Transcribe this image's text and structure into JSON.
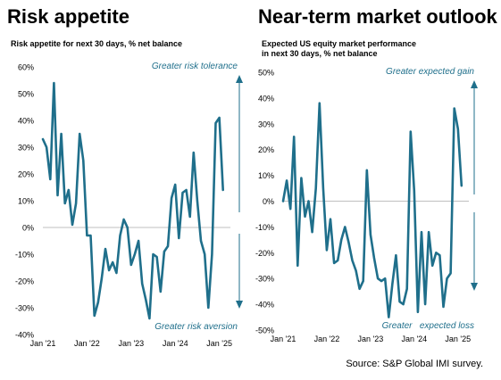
{
  "left_panel": {
    "title": "Risk appetite",
    "subtitle": "Risk appetite for next 30 days, % net balance",
    "annotation_top": "Greater risk tolerance",
    "annotation_bottom": "Greater risk aversion"
  },
  "right_panel": {
    "title": "Near-term market outlook",
    "subtitle_line1": "Expected US equity market performance",
    "subtitle_line2": "in next 30 days, % net balance",
    "annotation_top": "Greater expected gain",
    "annotation_bottom": "Greater   expected loss"
  },
  "source": "Source: S&P Global IMI survey.",
  "colors": {
    "line": "#1f6f8b",
    "arrow": "#1f6f8b",
    "axis": "#bfbfbf",
    "annotation": "#1f6f8b"
  },
  "chart_data": [
    {
      "type": "line",
      "title": "Risk appetite",
      "ylabel": "",
      "ylim": [
        -40,
        60
      ],
      "yticks": [
        -40,
        -30,
        -20,
        -10,
        0,
        10,
        20,
        30,
        40,
        50,
        60
      ],
      "ytick_labels": [
        "-40%",
        "-30%",
        "-20%",
        "-10%",
        "0%",
        "10%",
        "20%",
        "30%",
        "40%",
        "50%",
        "60%"
      ],
      "xlim": [
        2021.0,
        2025.25
      ],
      "xticks": [
        2021,
        2022,
        2023,
        2024,
        2025
      ],
      "xtick_labels": [
        "Jan '21",
        "Jan '22",
        "Jan '23",
        "Jan '24",
        "Jan '25"
      ],
      "grid": false,
      "series": [
        {
          "x": [
            2021.0,
            2021.083,
            2021.167,
            2021.25,
            2021.333,
            2021.417,
            2021.5,
            2021.583,
            2021.667,
            2021.75,
            2021.833,
            2021.917,
            2022.0,
            2022.083,
            2022.167,
            2022.25,
            2022.333,
            2022.417,
            2022.5,
            2022.583,
            2022.667,
            2022.75,
            2022.833,
            2022.917,
            2023.0,
            2023.083,
            2023.167,
            2023.25,
            2023.333,
            2023.417,
            2023.5,
            2023.583,
            2023.667,
            2023.75,
            2023.833,
            2023.917,
            2024.0,
            2024.083,
            2024.167,
            2024.25,
            2024.333,
            2024.417,
            2024.5,
            2024.583,
            2024.667,
            2024.75,
            2024.833,
            2024.917,
            2025.0,
            2025.083
          ],
          "values": [
            33,
            30,
            18,
            54,
            12,
            35,
            9,
            14,
            1,
            9,
            35,
            25,
            -3,
            -3,
            -33,
            -28,
            -19,
            -8,
            -16,
            -13,
            -17,
            -3,
            3,
            0,
            -14,
            -10,
            -5,
            -21,
            -27,
            -34,
            -10,
            -11,
            -24,
            -9,
            -7,
            11,
            16,
            -4,
            13,
            14,
            4,
            28,
            10,
            -5,
            -10,
            -30,
            -10,
            39,
            41,
            14
          ]
        }
      ]
    },
    {
      "type": "line",
      "title": "Near-term market outlook",
      "ylabel": "",
      "ylim": [
        -50,
        50
      ],
      "yticks": [
        -50,
        -40,
        -30,
        -20,
        -10,
        0,
        10,
        20,
        30,
        40,
        50
      ],
      "ytick_labels": [
        "-50%",
        "-40%",
        "-30%",
        "-20%",
        "-10%",
        "0%",
        "10%",
        "20%",
        "30%",
        "40%",
        "50%"
      ],
      "xlim": [
        2021.0,
        2025.25
      ],
      "xticks": [
        2021,
        2022,
        2023,
        2024,
        2025
      ],
      "xtick_labels": [
        "Jan '21",
        "Jan '22",
        "Jan '23",
        "Jan '24",
        "Jan '25"
      ],
      "grid": false,
      "series": [
        {
          "x": [
            2021.0,
            2021.083,
            2021.167,
            2021.25,
            2021.333,
            2021.417,
            2021.5,
            2021.583,
            2021.667,
            2021.75,
            2021.833,
            2021.917,
            2022.0,
            2022.083,
            2022.167,
            2022.25,
            2022.333,
            2022.417,
            2022.5,
            2022.583,
            2022.667,
            2022.75,
            2022.833,
            2022.917,
            2023.0,
            2023.083,
            2023.167,
            2023.25,
            2023.333,
            2023.417,
            2023.5,
            2023.583,
            2023.667,
            2023.75,
            2023.833,
            2023.917,
            2024.0,
            2024.083,
            2024.167,
            2024.25,
            2024.333,
            2024.417,
            2024.5,
            2024.583,
            2024.667,
            2024.75,
            2024.833,
            2024.917,
            2025.0,
            2025.083
          ],
          "values": [
            0,
            8,
            -3,
            25,
            -25,
            9,
            -6,
            0,
            -12,
            5,
            38,
            5,
            -19,
            -7,
            -24,
            -23,
            -15,
            -10,
            -16,
            -23,
            -27,
            -34,
            -31,
            12,
            -13,
            -22,
            -30,
            -31,
            -30,
            -45,
            -32,
            -21,
            -39,
            -40,
            -34,
            27,
            4,
            -43,
            -12,
            -40,
            -12,
            -25,
            -20,
            -21,
            -41,
            -30,
            -28,
            36,
            28,
            6
          ]
        }
      ]
    }
  ]
}
